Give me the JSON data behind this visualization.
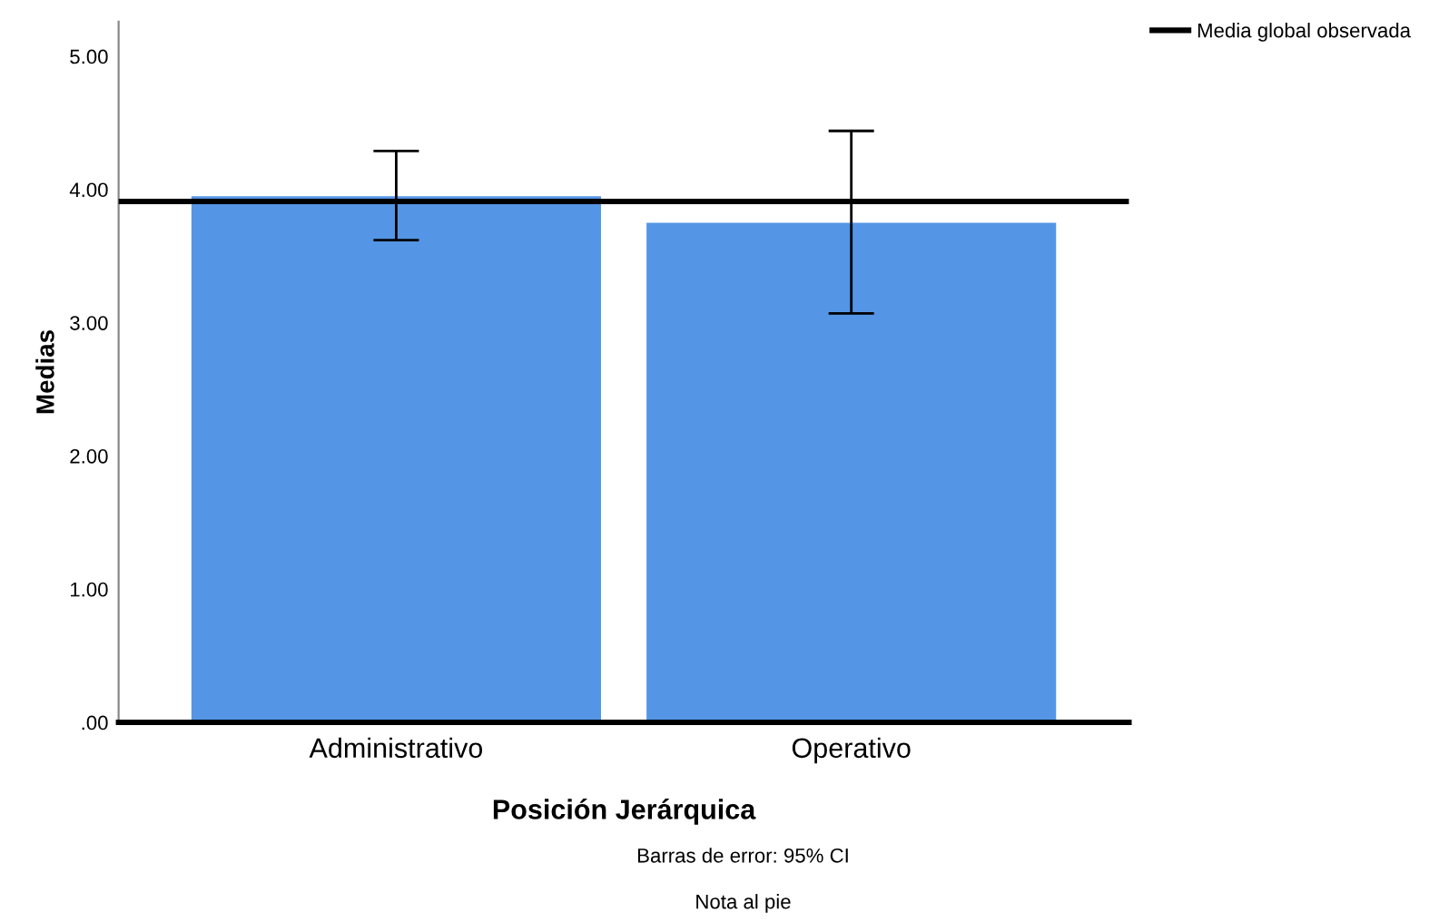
{
  "chart_data": {
    "type": "bar",
    "xlabel": "Posición Jerárquica",
    "ylabel": "Medias",
    "categories": [
      "Administrativo",
      "Operativo"
    ],
    "series": [
      {
        "color": "#5495e6",
        "values": [
          3.95,
          3.75
        ],
        "errors": [
          [
            3.62,
            4.29
          ],
          [
            3.07,
            4.44
          ]
        ]
      }
    ],
    "ylim": [
      0,
      5.26
    ],
    "yticks": [
      {
        "value": 0,
        "label": ".00"
      },
      {
        "value": 1,
        "label": "1.00"
      },
      {
        "value": 2,
        "label": "2.00"
      },
      {
        "value": 3,
        "label": "3.00"
      },
      {
        "value": 4,
        "label": "4.00"
      },
      {
        "value": 5,
        "label": "5.00"
      }
    ],
    "ref_lines": [
      {
        "axis": "y",
        "value": 3.91,
        "label": "Media global observada",
        "color": "#000000"
      }
    ],
    "legend": "top right",
    "grid": false,
    "annotations": [
      "Barras de error: 95% CI",
      "Nota al pie"
    ]
  }
}
